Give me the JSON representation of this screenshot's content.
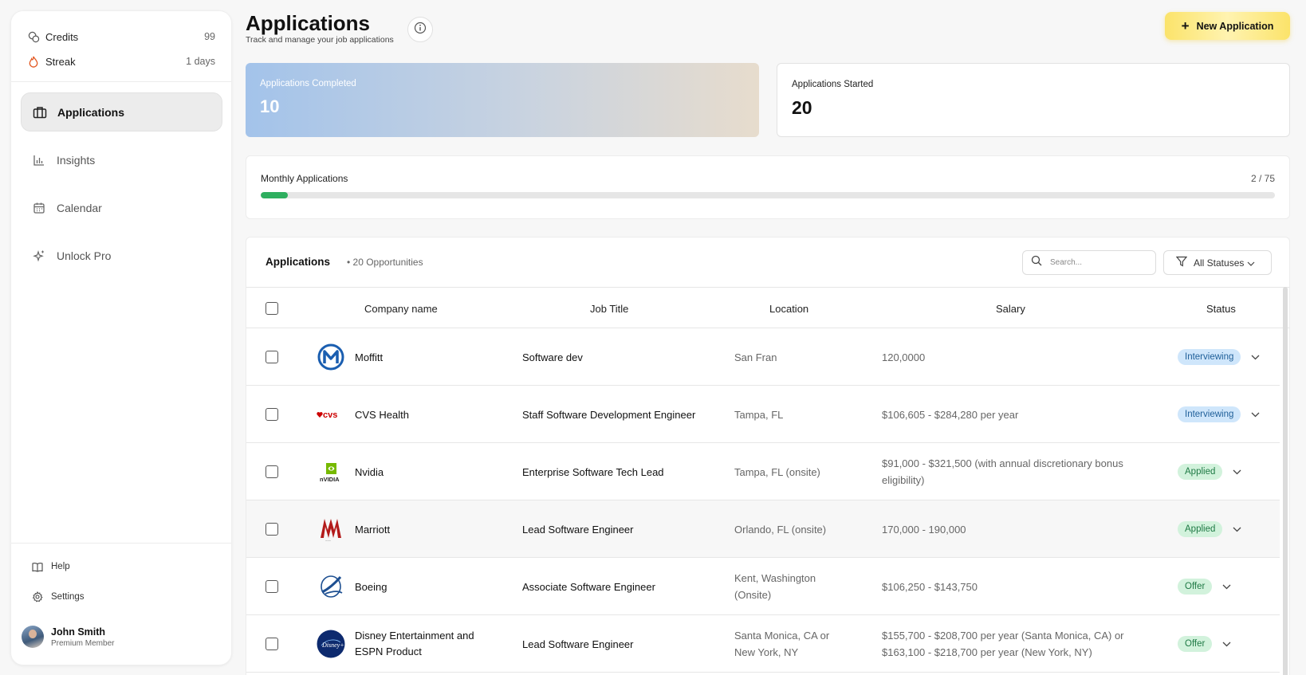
{
  "sidebar": {
    "stats": {
      "credits_label": "Credits",
      "credits_value": "99",
      "streak_label": "Streak",
      "streak_value": "1 days"
    },
    "nav": [
      {
        "label": "Applications",
        "icon": "briefcase-icon",
        "active": true
      },
      {
        "label": "Insights",
        "icon": "bar-chart-icon"
      },
      {
        "label": "Calendar",
        "icon": "calendar-icon"
      },
      {
        "label": "Unlock Pro",
        "icon": "sparkle-icon"
      }
    ],
    "footer": {
      "help_label": "Help",
      "settings_label": "Settings"
    },
    "user": {
      "name": "John Smith",
      "role": "Premium Member"
    }
  },
  "header": {
    "title": "Applications",
    "subtitle": "Track and manage your job applications",
    "new_button_label": "New Application"
  },
  "cards": {
    "completed_label": "Applications Completed",
    "completed_value": "10",
    "started_label": "Applications Started",
    "started_value": "20"
  },
  "monthly": {
    "label": "Monthly Applications",
    "count_text": "2 / 75",
    "progress": 0.0267,
    "bar_color": "#2eaf5f"
  },
  "table": {
    "title": "Applications",
    "count_text": "• 20 Opportunities",
    "search_placeholder": "Search...",
    "filter_label": "All Statuses",
    "columns": [
      "Company name",
      "Job Title",
      "Location",
      "Salary",
      "Status"
    ],
    "rows": [
      {
        "company": "Moffitt",
        "logo": "moffitt-logo",
        "job": "Software dev",
        "location": "San Fran",
        "salary": "120,0000",
        "status": "Interviewing"
      },
      {
        "company": "CVS Health",
        "logo": "cvs-logo",
        "job": "Staff Software Development Engineer",
        "location": "Tampa, FL",
        "salary": "$106,605 - $284,280 per year",
        "status": "Interviewing"
      },
      {
        "company": "Nvidia",
        "logo": "nvidia-logo",
        "job": "Enterprise Software Tech Lead",
        "location": "Tampa, FL (onsite)",
        "salary": "$91,000 - $321,500 (with annual discretionary bonus eligibility)",
        "status": "Applied"
      },
      {
        "company": "Marriott",
        "logo": "marriott-logo",
        "job": "Lead Software Engineer",
        "location": "Orlando, FL (onsite)",
        "salary": "170,000 - 190,000",
        "status": "Applied"
      },
      {
        "company": "Boeing",
        "logo": "boeing-logo",
        "job": "Associate Software Engineer",
        "location": "Kent, Washington (Onsite)",
        "salary": "$106,250 - $143,750",
        "status": "Offer"
      },
      {
        "company": "Disney Entertainment and ESPN Product",
        "logo": "disney-logo",
        "job": "Lead Software Engineer",
        "location": "Santa Monica, CA or New York, NY",
        "salary": "$155,700 - $208,700 per year (Santa Monica, CA) or $163,100 - $218,700 per year (New York, NY)",
        "status": "Offer"
      }
    ]
  }
}
